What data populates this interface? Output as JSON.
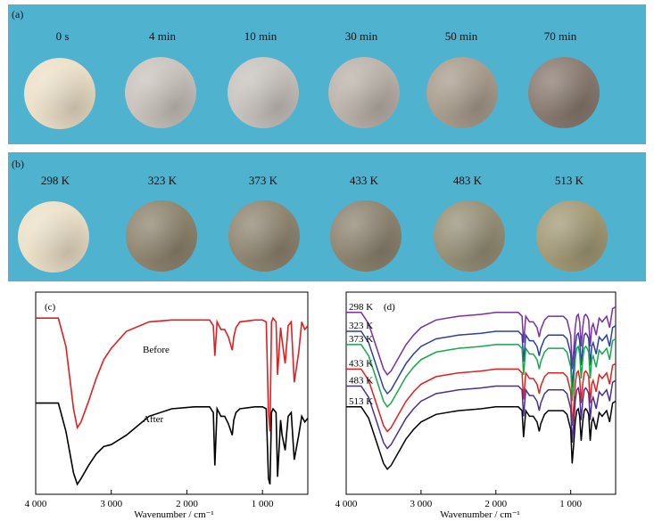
{
  "panel_a": {
    "tag": "(a)",
    "samples": [
      {
        "label": "0 s",
        "color": "#ece0c8"
      },
      {
        "label": "4 min",
        "color": "#c9c3bc"
      },
      {
        "label": "10 min",
        "color": "#c8c3bd"
      },
      {
        "label": "30 min",
        "color": "#bcb3aa"
      },
      {
        "label": "50 min",
        "color": "#a99d8d"
      },
      {
        "label": "70 min",
        "color": "#8a7b70"
      }
    ]
  },
  "panel_b": {
    "tag": "(b)",
    "samples": [
      {
        "label": "298 K",
        "color": "#ece0c8"
      },
      {
        "label": "323 K",
        "color": "#8f856f"
      },
      {
        "label": "373 K",
        "color": "#908671"
      },
      {
        "label": "433 K",
        "color": "#8e8471"
      },
      {
        "label": "483 K",
        "color": "#979078"
      },
      {
        "label": "513 K",
        "color": "#a39a76"
      }
    ]
  },
  "chart_data": [
    {
      "type": "line",
      "panel": "(c)",
      "xlabel": "Wavenumber / cm⁻¹",
      "ylabel": "",
      "xlim": [
        4000,
        400
      ],
      "x_ticks": [
        "4 000",
        "3 000",
        "2 000",
        "1 000"
      ],
      "x_tick_values": [
        4000,
        3000,
        2000,
        1000
      ],
      "series": [
        {
          "name": "Before",
          "color": "#e02020",
          "x": [
            4000,
            3700,
            3600,
            3500,
            3450,
            3400,
            3300,
            3200,
            3100,
            3000,
            2800,
            2500,
            2200,
            1900,
            1700,
            1650,
            1630,
            1600,
            1550,
            1500,
            1450,
            1400,
            1380,
            1350,
            1300,
            1100,
            1000,
            950,
            920,
            900,
            880,
            860,
            820,
            800,
            760,
            740,
            700,
            660,
            620,
            580,
            520,
            480,
            440,
            400
          ],
          "y": [
            0.9,
            0.9,
            0.75,
            0.42,
            0.32,
            0.35,
            0.46,
            0.58,
            0.68,
            0.74,
            0.83,
            0.88,
            0.89,
            0.89,
            0.89,
            0.86,
            0.7,
            0.88,
            0.84,
            0.84,
            0.8,
            0.73,
            0.8,
            0.85,
            0.88,
            0.89,
            0.89,
            0.88,
            0.4,
            0.3,
            0.88,
            0.9,
            0.88,
            0.6,
            0.85,
            0.78,
            0.66,
            0.86,
            0.88,
            0.56,
            0.72,
            0.88,
            0.84,
            0.86
          ]
        },
        {
          "name": "After",
          "color": "#000000",
          "x": [
            4000,
            3700,
            3600,
            3500,
            3450,
            3400,
            3300,
            3200,
            3100,
            3000,
            2800,
            2500,
            2200,
            1900,
            1700,
            1650,
            1630,
            1600,
            1550,
            1500,
            1450,
            1400,
            1380,
            1350,
            1300,
            1100,
            1000,
            950,
            920,
            900,
            880,
            860,
            820,
            800,
            760,
            740,
            700,
            660,
            620,
            580,
            520,
            480,
            440,
            400
          ],
          "y": [
            0.45,
            0.45,
            0.3,
            0.08,
            0.02,
            0.05,
            0.12,
            0.18,
            0.22,
            0.23,
            0.28,
            0.38,
            0.42,
            0.43,
            0.43,
            0.4,
            0.12,
            0.42,
            0.38,
            0.38,
            0.34,
            0.28,
            0.36,
            0.4,
            0.42,
            0.43,
            0.43,
            0.42,
            0.05,
            0.02,
            0.4,
            0.42,
            0.4,
            0.06,
            0.36,
            0.28,
            0.2,
            0.38,
            0.4,
            0.15,
            0.28,
            0.38,
            0.35,
            0.37
          ]
        }
      ]
    },
    {
      "type": "line",
      "panel": "(d)",
      "xlabel": "Wavenumber / cm⁻¹",
      "ylabel": "",
      "xlim": [
        4000,
        400
      ],
      "x_ticks": [
        "4 000",
        "3 000",
        "2 000",
        "1 000"
      ],
      "x_tick_values": [
        4000,
        3000,
        2000,
        1000
      ],
      "series": [
        {
          "name": "298 K",
          "color": "#7b2fa0",
          "offset": 0.93
        },
        {
          "name": "323 K",
          "color": "#2b3fa0",
          "offset": 0.83
        },
        {
          "name": "373 K",
          "color": "#16a84a",
          "offset": 0.76
        },
        {
          "name": "433 K",
          "color": "#e02020",
          "offset": 0.63
        },
        {
          "name": "483 K",
          "color": "#4a2f90",
          "offset": 0.54
        },
        {
          "name": "513 K",
          "color": "#000000",
          "offset": 0.43
        }
      ],
      "shape_x": [
        4000,
        3800,
        3700,
        3600,
        3500,
        3450,
        3400,
        3300,
        3200,
        3100,
        3000,
        2800,
        2500,
        2200,
        2000,
        1800,
        1700,
        1650,
        1630,
        1600,
        1550,
        1500,
        1450,
        1420,
        1400,
        1350,
        1300,
        1100,
        1050,
        1000,
        980,
        960,
        940,
        920,
        900,
        880,
        860,
        840,
        820,
        800,
        780,
        760,
        740,
        720,
        700,
        660,
        620,
        580,
        520,
        480,
        440,
        400
      ],
      "shape_y": [
        0,
        0,
        -0.06,
        -0.18,
        -0.3,
        -0.33,
        -0.31,
        -0.24,
        -0.17,
        -0.12,
        -0.08,
        -0.04,
        -0.02,
        -0.01,
        0,
        0,
        0,
        -0.02,
        -0.16,
        -0.02,
        -0.05,
        -0.05,
        -0.08,
        -0.13,
        -0.09,
        -0.04,
        -0.02,
        -0.02,
        -0.04,
        -0.12,
        -0.3,
        -0.2,
        -0.08,
        -0.02,
        -0.01,
        -0.05,
        -0.18,
        -0.08,
        -0.02,
        -0.01,
        -0.02,
        -0.04,
        -0.18,
        -0.08,
        -0.06,
        -0.12,
        -0.03,
        -0.05,
        -0.02,
        -0.08,
        0.02,
        0.03
      ]
    }
  ]
}
